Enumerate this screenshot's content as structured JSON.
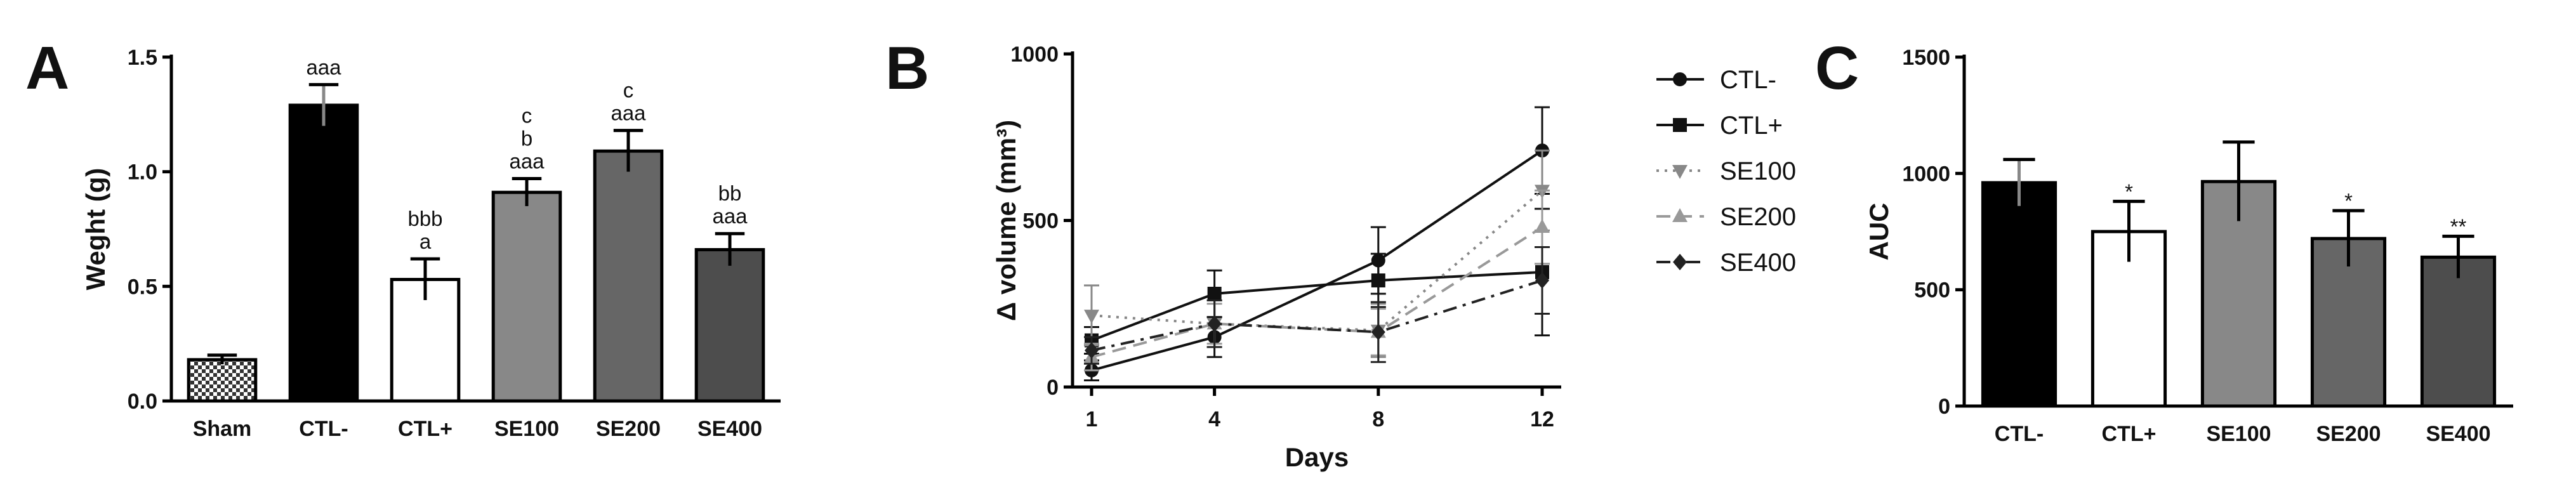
{
  "chart_data": [
    {
      "panel": "A",
      "type": "bar",
      "ylabel": "Weght (g)",
      "xlabel": "",
      "ylim": [
        0,
        1.5
      ],
      "yticks": [
        "0.0",
        "0.5",
        "1.0",
        "1.5"
      ],
      "categories": [
        "Sham",
        "CTL-",
        "CTL+",
        "SE100",
        "SE200",
        "SE400"
      ],
      "values": [
        0.18,
        1.29,
        0.53,
        0.91,
        1.09,
        0.66
      ],
      "errors": [
        0.02,
        0.09,
        0.09,
        0.06,
        0.09,
        0.07
      ],
      "fills": [
        "pattern-check",
        "#000000",
        "#ffffff",
        "#888888",
        "#666666",
        "#4d4d4d"
      ],
      "annotations": [
        [],
        [
          "aaa"
        ],
        [
          "bbb",
          "a"
        ],
        [
          "c",
          "b",
          "aaa"
        ],
        [
          "c",
          "aaa"
        ],
        [
          "bb",
          "aaa"
        ]
      ]
    },
    {
      "panel": "B",
      "type": "line",
      "ylabel": "Δ volume (mm³)",
      "xlabel": "Days",
      "ylim": [
        0,
        1000
      ],
      "yticks": [
        "0",
        "500",
        "1000"
      ],
      "x": [
        1,
        4,
        8,
        12
      ],
      "xticks": [
        "1",
        "4",
        "8",
        "12"
      ],
      "legend_position": "right",
      "series": [
        {
          "name": "CTL-",
          "values": [
            50,
            150,
            380,
            710
          ],
          "errors": [
            30,
            60,
            100,
            130
          ],
          "marker": "circle",
          "dash": "solid",
          "color": "#111111"
        },
        {
          "name": "CTL+",
          "values": [
            140,
            280,
            320,
            345
          ],
          "errors": [
            40,
            70,
            80,
            190
          ],
          "marker": "square",
          "dash": "solid",
          "color": "#111111"
        },
        {
          "name": "SE100",
          "values": [
            215,
            190,
            170,
            590
          ],
          "errors": [
            90,
            70,
            80,
            120
          ],
          "marker": "triangle-down",
          "dash": "dotted",
          "color": "#888888"
        },
        {
          "name": "SE200",
          "values": [
            90,
            190,
            165,
            480
          ],
          "errors": [
            40,
            60,
            70,
            110
          ],
          "marker": "triangle-up",
          "dash": "dashed",
          "color": "#999999"
        },
        {
          "name": "SE400",
          "values": [
            110,
            190,
            165,
            320
          ],
          "errors": [
            40,
            70,
            90,
            100
          ],
          "marker": "diamond",
          "dash": "dashdot",
          "color": "#222222"
        }
      ]
    },
    {
      "panel": "C",
      "type": "bar",
      "ylabel": "AUC",
      "xlabel": "",
      "ylim": [
        0,
        1500
      ],
      "yticks": [
        "0",
        "500",
        "1000",
        "1500"
      ],
      "categories": [
        "CTL-",
        "CTL+",
        "SE100",
        "SE200",
        "SE400"
      ],
      "values": [
        960,
        750,
        965,
        720,
        640
      ],
      "errors": [
        100,
        130,
        170,
        120,
        90
      ],
      "fills": [
        "#000000",
        "#ffffff",
        "#888888",
        "#666666",
        "#4d4d4d"
      ],
      "annotations": [
        [],
        [
          "*"
        ],
        [],
        [
          "*"
        ],
        [
          "**"
        ]
      ]
    }
  ]
}
